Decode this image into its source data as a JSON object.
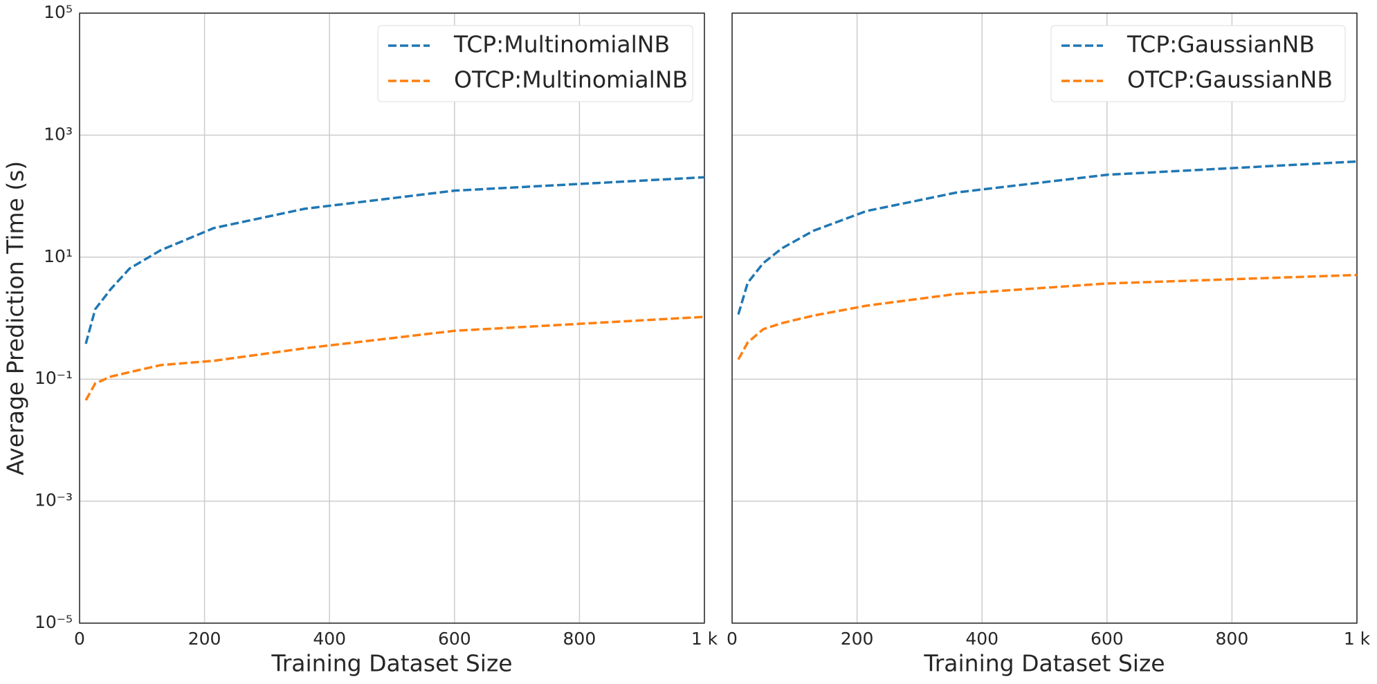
{
  "chart_data": [
    {
      "type": "line",
      "xlabel": "Training Dataset Size",
      "ylabel": "Average Prediction Time (s)",
      "yscale": "log",
      "grid": true,
      "legend": "upper right",
      "x": [
        10,
        25,
        50,
        80,
        130,
        215,
        360,
        600,
        1000
      ],
      "series": [
        {
          "name": "TCP:MultinomialNB",
          "color": "#1f77b4",
          "values": [
            0.38,
            1.4,
            3,
            6.5,
            13,
            30,
            62,
            123,
            204
          ]
        },
        {
          "name": "OTCP:MultinomialNB",
          "color": "#ff7f0e",
          "values": [
            0.045,
            0.085,
            0.11,
            0.13,
            0.17,
            0.2,
            0.32,
            0.62,
            1.05
          ]
        }
      ],
      "xlim": [
        0,
        1000
      ],
      "xticks": [
        0,
        200,
        400,
        600,
        800,
        {
          "value": 1000,
          "label": "1 k"
        }
      ],
      "ylim": [
        1e-05,
        100000
      ],
      "yticks": [
        {
          "value": 1e-05,
          "label": "10⁻⁵"
        },
        {
          "value": 0.001,
          "label": "10⁻³"
        },
        {
          "value": 0.1,
          "label": "10⁻¹"
        },
        {
          "value": 10,
          "label": "10¹"
        },
        {
          "value": 1000,
          "label": "10³"
        },
        {
          "value": 100000,
          "label": "10⁵"
        }
      ]
    },
    {
      "type": "line",
      "xlabel": "Training Dataset Size",
      "yscale": "log",
      "grid": true,
      "legend": "upper right",
      "x": [
        10,
        25,
        50,
        80,
        130,
        215,
        360,
        600,
        1000
      ],
      "series": [
        {
          "name": "TCP:GaussianNB",
          "color": "#1f77b4",
          "values": [
            1.15,
            3.8,
            8,
            14,
            27,
            57,
            115,
            224,
            370
          ]
        },
        {
          "name": "OTCP:GaussianNB",
          "color": "#ff7f0e",
          "values": [
            0.21,
            0.4,
            0.66,
            0.83,
            1.1,
            1.6,
            2.5,
            3.7,
            5.1
          ]
        }
      ],
      "xlim": [
        0,
        1000
      ],
      "xticks": [
        0,
        200,
        400,
        600,
        800,
        {
          "value": 1000,
          "label": "1 k"
        }
      ],
      "ylim": [
        1e-05,
        100000
      ]
    }
  ]
}
